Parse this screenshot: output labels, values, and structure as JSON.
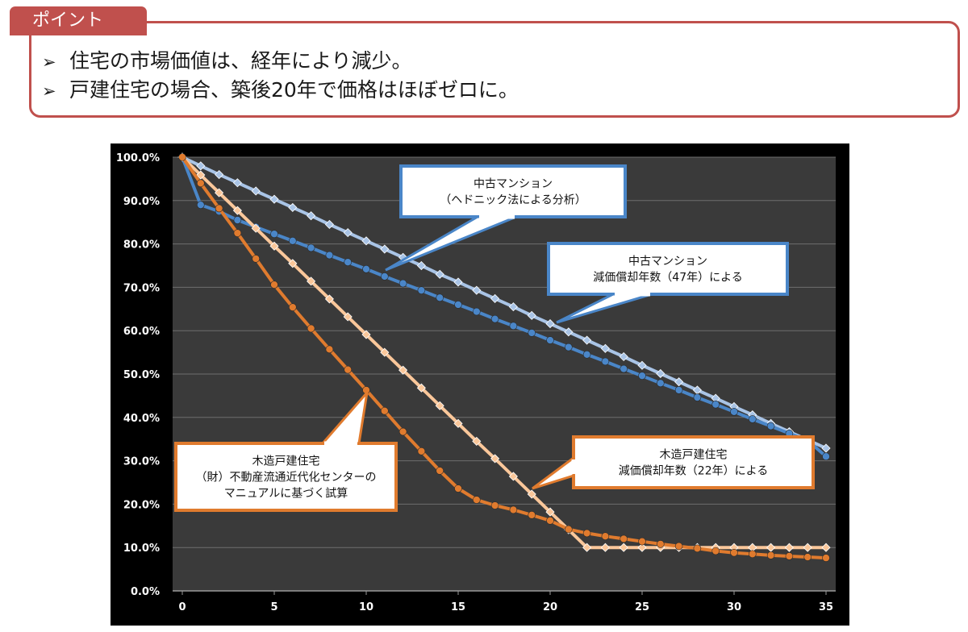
{
  "header": {
    "tab_label": "ポイント",
    "bullet_mark": "➢",
    "bullets": [
      "住宅の市場価値は、経年により減少。",
      "戸建住宅の場合、築後20年で価格はほぼゼロに。"
    ]
  },
  "chart_data": {
    "type": "line",
    "xlabel": "",
    "ylabel": "",
    "xlim": [
      0,
      35
    ],
    "ylim": [
      0,
      100
    ],
    "x_ticks": [
      0,
      5,
      10,
      15,
      20,
      25,
      30,
      35
    ],
    "y_ticks": [
      "0.0%",
      "10.0%",
      "20.0%",
      "30.0%",
      "40.0%",
      "50.0%",
      "60.0%",
      "70.0%",
      "80.0%",
      "90.0%",
      "100.0%"
    ],
    "grid": true,
    "background": "#3a3a3a",
    "series": [
      {
        "color": "#a9c4e6",
        "marker": "diamond",
        "x": [
          0,
          1,
          2,
          3,
          4,
          5,
          6,
          7,
          8,
          9,
          10,
          11,
          12,
          13,
          14,
          15,
          16,
          17,
          18,
          19,
          20,
          21,
          22,
          23,
          24,
          25,
          26,
          27,
          28,
          29,
          30,
          31,
          32,
          33,
          34,
          35
        ],
        "values": [
          100,
          98,
          96,
          94.1,
          92.2,
          90.3,
          88.4,
          86.5,
          84.5,
          82.6,
          80.7,
          78.8,
          76.9,
          75,
          73,
          71.2,
          69.3,
          67.4,
          65.5,
          63.5,
          61.6,
          59.7,
          57.8,
          55.9,
          54,
          52,
          50.1,
          48.2,
          46.3,
          44.4,
          42.5,
          40.6,
          38.6,
          36.7,
          34.8,
          32.9
        ]
      },
      {
        "color": "#4a86c8",
        "marker": "circle",
        "x": [
          0,
          1,
          2,
          3,
          4,
          5,
          6,
          7,
          8,
          9,
          10,
          11,
          12,
          13,
          14,
          15,
          16,
          17,
          18,
          19,
          20,
          21,
          22,
          23,
          24,
          25,
          26,
          27,
          28,
          29,
          30,
          31,
          32,
          33,
          34,
          35
        ],
        "values": [
          100,
          89,
          87.5,
          85.5,
          83.9,
          82.3,
          80.7,
          79.1,
          77.4,
          75.8,
          74.2,
          72.5,
          70.9,
          69.3,
          67.6,
          66,
          64.4,
          62.7,
          61.1,
          59.5,
          57.8,
          56.2,
          54.5,
          52.9,
          51.2,
          49.6,
          47.9,
          46.3,
          44.6,
          43,
          41.3,
          39.6,
          38,
          36.3,
          34.7,
          31
        ]
      },
      {
        "color": "#fac79a",
        "marker": "diamond",
        "x": [
          0,
          1,
          2,
          3,
          4,
          5,
          6,
          7,
          8,
          9,
          10,
          11,
          12,
          13,
          14,
          15,
          16,
          17,
          18,
          19,
          20,
          21,
          22,
          23,
          24,
          25,
          26,
          27,
          28,
          29,
          30,
          31,
          32,
          33,
          34,
          35
        ],
        "values": [
          100,
          95.9,
          91.8,
          87.7,
          83.6,
          79.5,
          75.5,
          71.4,
          67.3,
          63.2,
          59.1,
          55,
          50.9,
          46.8,
          42.7,
          38.6,
          34.5,
          30.5,
          26.4,
          22.3,
          18.2,
          14.1,
          10,
          10,
          10,
          10,
          10,
          10,
          10,
          10,
          10,
          10,
          10,
          10,
          10,
          10
        ]
      },
      {
        "color": "#e07b2e",
        "marker": "circle",
        "x": [
          0,
          1,
          2,
          3,
          4,
          5,
          6,
          7,
          8,
          9,
          10,
          11,
          12,
          13,
          14,
          15,
          16,
          17,
          18,
          19,
          20,
          21,
          22,
          23,
          24,
          25,
          26,
          27,
          28,
          29,
          30,
          31,
          32,
          33,
          34,
          35
        ],
        "values": [
          100,
          94,
          88.2,
          82.5,
          76.6,
          70.6,
          65.4,
          60.5,
          55.7,
          51,
          46.3,
          41.5,
          36.7,
          32.2,
          27.7,
          23.6,
          21,
          19.7,
          18.7,
          17.5,
          16.2,
          14.2,
          13.3,
          12.6,
          12,
          11.4,
          10.8,
          10.3,
          9.8,
          9.2,
          8.8,
          8.5,
          8.2,
          8,
          7.8,
          7.6
        ]
      }
    ],
    "callouts": [
      {
        "lines": [
          "中古マンション",
          "（ヘドニック法による分析）"
        ],
        "border": "#4a86c8"
      },
      {
        "lines": [
          "中古マンション",
          "減価償却年数（47年）による"
        ],
        "border": "#4a86c8"
      },
      {
        "lines": [
          "木造戸建住宅",
          "（財）不動産流通近代化センターの",
          "マニュアルに基づく試算"
        ],
        "border": "#e07b2e"
      },
      {
        "lines": [
          "木造戸建住宅",
          "減価償却年数（22年）による"
        ],
        "border": "#e07b2e"
      }
    ]
  }
}
